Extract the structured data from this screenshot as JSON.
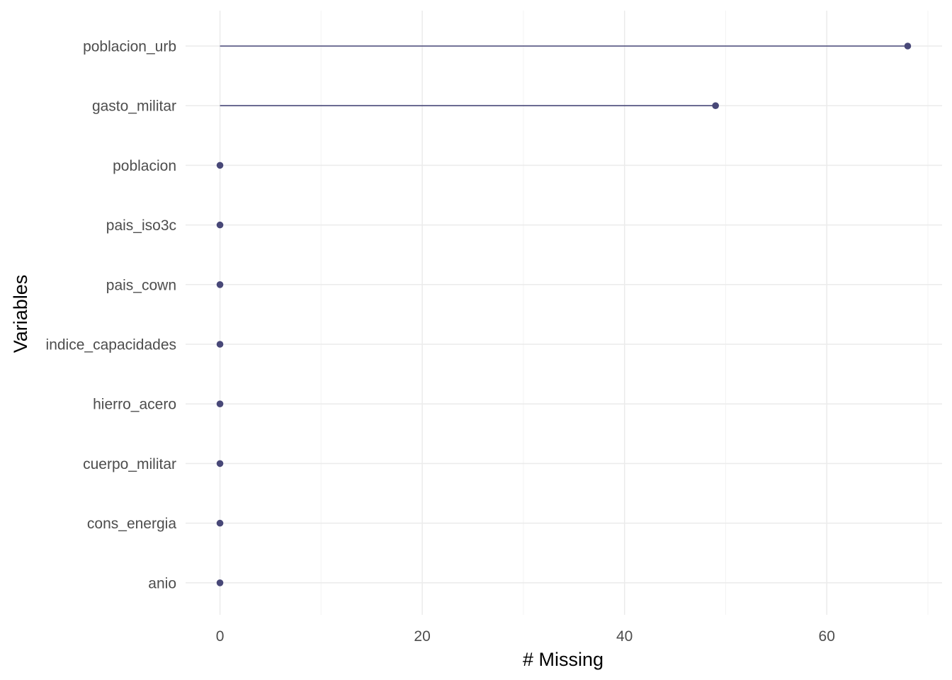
{
  "chart_data": {
    "type": "lollipop",
    "title": "",
    "xlabel": "# Missing",
    "ylabel": "Variables",
    "categories": [
      "poblacion_urb",
      "gasto_militar",
      "poblacion",
      "pais_iso3c",
      "pais_cown",
      "indice_capacidades",
      "hierro_acero",
      "cuerpo_militar",
      "cons_energia",
      "anio"
    ],
    "values": [
      68,
      49,
      0,
      0,
      0,
      0,
      0,
      0,
      0,
      0
    ],
    "xlim": [
      -3.4,
      71.4
    ],
    "xticks": [
      0,
      20,
      40,
      60
    ],
    "grid": true,
    "legend": "none",
    "colors": {
      "mark": "#484878",
      "grid_major": "#ebebeb",
      "grid_minor": "#f4f4f4",
      "tick_text": "#4d4d4d",
      "title_text": "#000000"
    }
  }
}
